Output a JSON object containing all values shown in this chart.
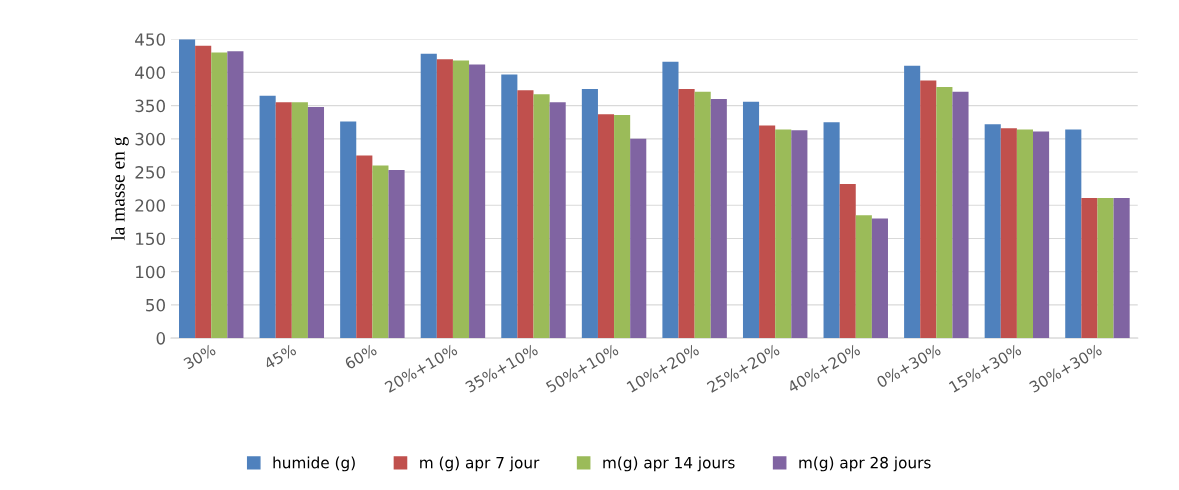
{
  "chart_data": {
    "type": "bar",
    "ylabel": "la masse en g",
    "categories": [
      "30%",
      "45%",
      "60%",
      "20%+10%",
      "35%+10%",
      "50%+10%",
      "10%+20%",
      "25%+20%",
      "40%+20%",
      "0%+30%",
      "15%+30%",
      "30%+30%"
    ],
    "series": [
      {
        "name": "humide (g)",
        "color": "#4f81bd",
        "values": [
          450,
          365,
          326,
          428,
          397,
          375,
          416,
          356,
          325,
          410,
          322,
          314
        ]
      },
      {
        "name": "m (g) apr 7 jour",
        "color": "#c0504d",
        "values": [
          440,
          355,
          275,
          420,
          373,
          337,
          375,
          320,
          232,
          388,
          316,
          211
        ]
      },
      {
        "name": "m(g) apr 14 jours",
        "color": "#9bbb59",
        "values": [
          430,
          355,
          260,
          418,
          367,
          336,
          371,
          314,
          185,
          378,
          314,
          211
        ]
      },
      {
        "name": "m(g) apr 28 jours",
        "color": "#8064a2",
        "values": [
          432,
          348,
          253,
          412,
          355,
          300,
          360,
          313,
          180,
          371,
          311,
          211
        ]
      }
    ],
    "ylim": [
      0,
      450
    ],
    "yticks": [
      0,
      50,
      100,
      150,
      200,
      250,
      300,
      350,
      400,
      450
    ],
    "grid": "y",
    "legend": "bottom"
  }
}
